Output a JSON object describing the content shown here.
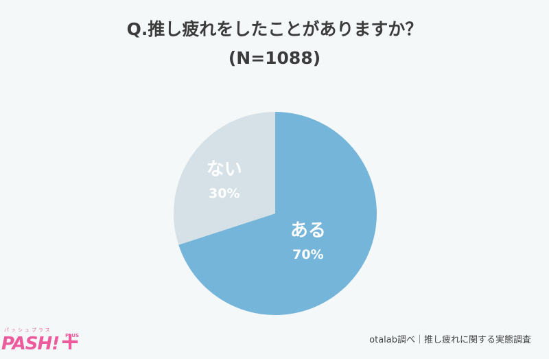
{
  "title_line1": "Q.推し疲れをしたことがありますか？",
  "title_line2": "(N=1088)",
  "credit": "otalab調べ｜推し疲れに関する実態調査",
  "logo": {
    "sub": "パッシュプラス",
    "main": "PASH!",
    "plus_mark": "+",
    "plus_text": "PLUS"
  },
  "chart_data": {
    "type": "pie",
    "title": "Q.推し疲れをしたことがありますか？",
    "subtitle": "(N=1088)",
    "slices": [
      {
        "label": "ある",
        "value": 70,
        "value_label": "70%",
        "color": "#74b5d9"
      },
      {
        "label": "ない",
        "value": 30,
        "value_label": "30%",
        "color": "#d5e1e6"
      }
    ],
    "start_angle_deg": 0,
    "direction": "clockwise"
  }
}
